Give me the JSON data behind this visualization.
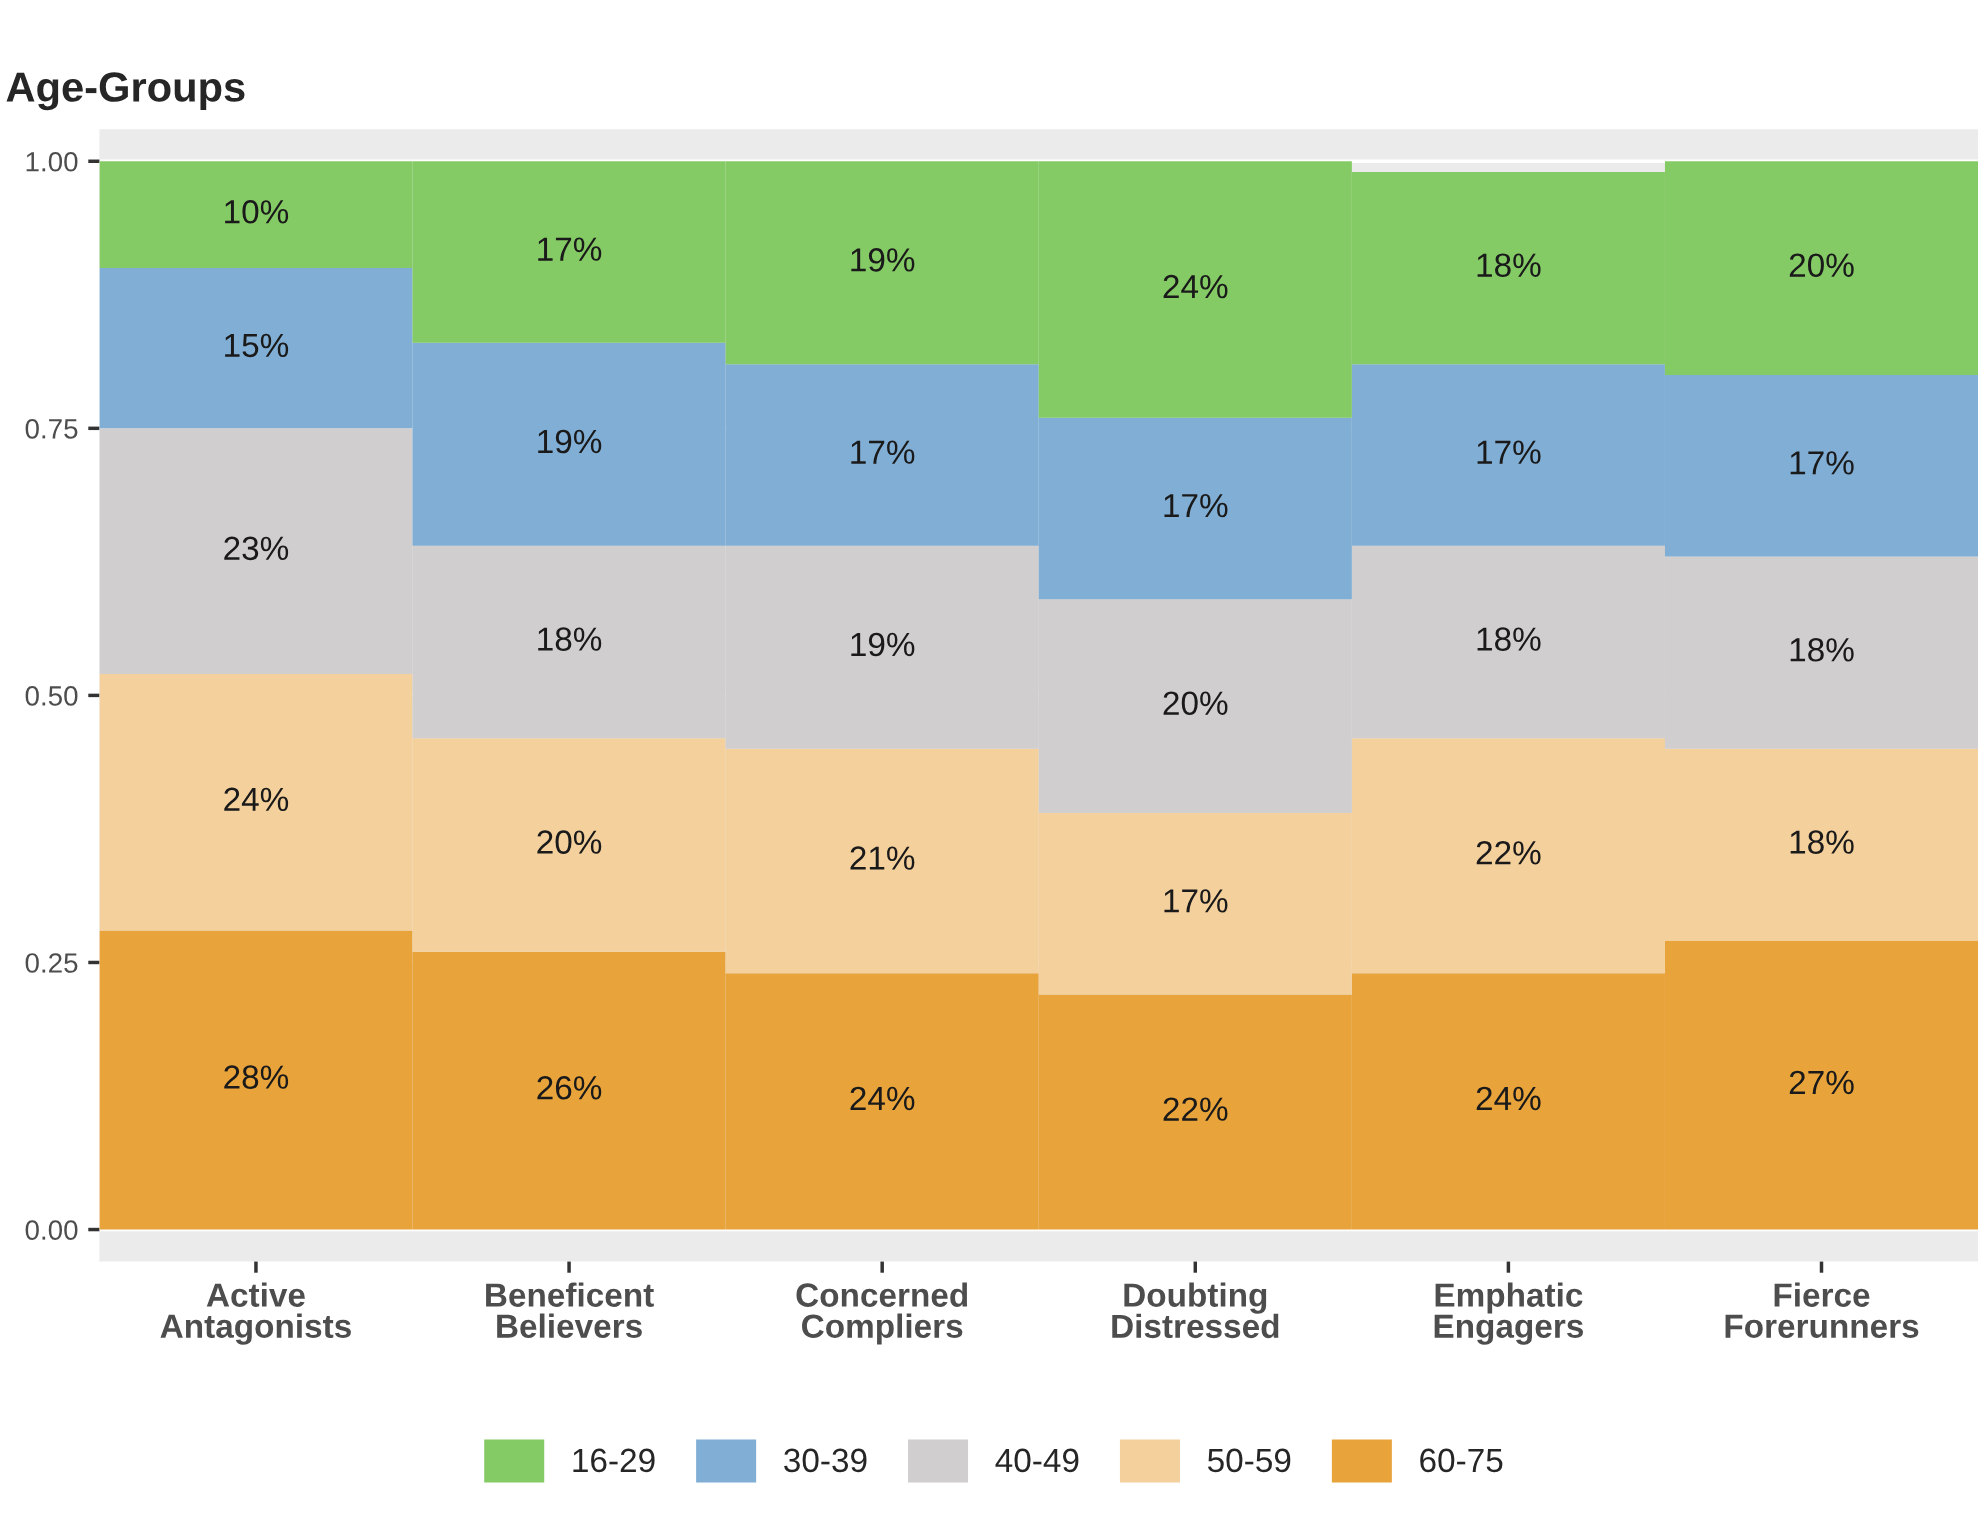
{
  "chart_data": {
    "type": "bar",
    "title": "Age-Groups",
    "stacked": true,
    "categories": [
      "Active\nAntagonists",
      "Beneficent\nBelievers",
      "Concerned\nCompliers",
      "Doubting\nDistressed",
      "Emphatic\nEngagers",
      "Fierce\nForerunners"
    ],
    "series": [
      {
        "name": "60-75",
        "color": "#e8a33a",
        "values": [
          0.28,
          0.26,
          0.24,
          0.22,
          0.24,
          0.27
        ],
        "value_labels": [
          "28%",
          "26%",
          "24%",
          "22%",
          "24%",
          "27%"
        ]
      },
      {
        "name": "50-59",
        "color": "#f4d09c",
        "values": [
          0.24,
          0.2,
          0.21,
          0.17,
          0.22,
          0.18
        ],
        "value_labels": [
          "24%",
          "20%",
          "21%",
          "17%",
          "22%",
          "18%"
        ]
      },
      {
        "name": "40-49",
        "color": "#d0cecf",
        "values": [
          0.23,
          0.18,
          0.19,
          0.2,
          0.18,
          0.18
        ],
        "value_labels": [
          "23%",
          "18%",
          "19%",
          "20%",
          "18%",
          "18%"
        ]
      },
      {
        "name": "30-39",
        "color": "#80aed5",
        "values": [
          0.15,
          0.19,
          0.17,
          0.17,
          0.17,
          0.17
        ],
        "value_labels": [
          "15%",
          "19%",
          "17%",
          "17%",
          "17%",
          "17%"
        ]
      },
      {
        "name": "16-29",
        "color": "#84ca65",
        "values": [
          0.1,
          0.17,
          0.19,
          0.24,
          0.18,
          0.2
        ],
        "value_labels": [
          "10%",
          "17%",
          "19%",
          "24%",
          "18%",
          "20%"
        ]
      }
    ],
    "ylim": [
      -0.03,
      1.03
    ],
    "yticks": [
      "0.00",
      "0.25",
      "0.50",
      "0.75",
      "1.00"
    ],
    "grid": "y",
    "legend": "bottom"
  }
}
